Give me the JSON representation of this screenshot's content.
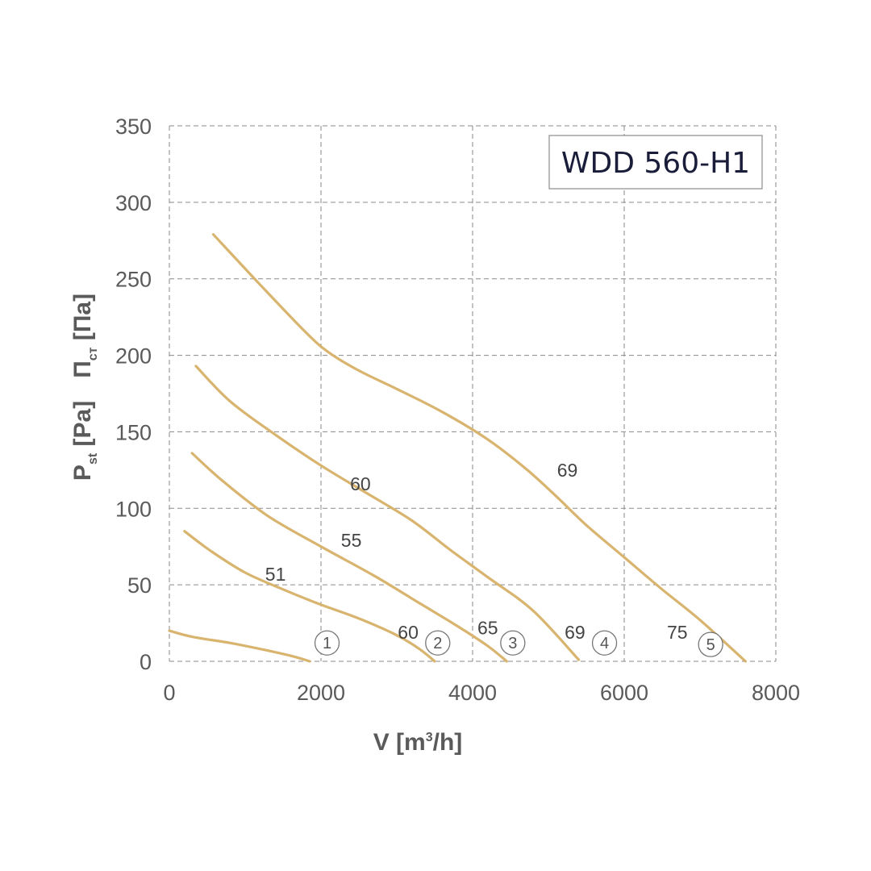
{
  "chart_data": {
    "type": "line",
    "title": "WDD 560-H1",
    "xlabel": {
      "main": "V [m",
      "sup": "3",
      "tail": "/h]"
    },
    "ylabel": {
      "en_main": "P",
      "en_sub": "st",
      "en_tail": " [Pa]",
      "ru_main": "П",
      "ru_sub": "ст",
      "ru_tail": " [Па]"
    },
    "xlim": [
      0,
      8000
    ],
    "ylim": [
      0,
      350
    ],
    "xticks": [
      0,
      2000,
      4000,
      6000,
      8000
    ],
    "yticks": [
      0,
      50,
      100,
      150,
      200,
      250,
      300,
      350
    ],
    "grid": true,
    "series": [
      {
        "name": "1",
        "x": [
          0,
          300,
          800,
          1300,
          1650,
          1850
        ],
        "y": [
          20,
          16,
          12,
          7,
          3,
          0
        ]
      },
      {
        "name": "2",
        "x": [
          200,
          550,
          1000,
          1500,
          2000,
          2500,
          3000,
          3300,
          3500
        ],
        "y": [
          85,
          72,
          58,
          47,
          37,
          28,
          17,
          8,
          0
        ]
      },
      {
        "name": "3",
        "x": [
          300,
          700,
          1300,
          2000,
          2700,
          3300,
          3800,
          4200,
          4450
        ],
        "y": [
          136,
          118,
          95,
          75,
          56,
          38,
          23,
          10,
          0
        ]
      },
      {
        "name": "4",
        "x": [
          350,
          800,
          1400,
          2000,
          2600,
          3200,
          3700,
          4200,
          4800,
          5400
        ],
        "y": [
          193,
          170,
          148,
          128,
          110,
          92,
          73,
          55,
          33,
          1
        ]
      },
      {
        "name": "5",
        "x": [
          580,
          1200,
          1800,
          2100,
          2500,
          3000,
          3600,
          4200,
          4700,
          5100,
          5500,
          6000,
          6500,
          7000,
          7600
        ],
        "y": [
          279,
          246,
          215,
          202,
          190,
          178,
          163,
          145,
          126,
          108,
          89,
          68,
          47,
          27,
          0
        ]
      }
    ],
    "annotations": [
      {
        "text": "51",
        "x": 1400,
        "y": 57
      },
      {
        "text": "60",
        "x": 2520,
        "y": 116
      },
      {
        "text": "55",
        "x": 2400,
        "y": 79
      },
      {
        "text": "69",
        "x": 5250,
        "y": 125
      },
      {
        "text": "60",
        "x": 3150,
        "y": 19
      },
      {
        "text": "65",
        "x": 4200,
        "y": 22
      },
      {
        "text": "69",
        "x": 5350,
        "y": 19
      },
      {
        "text": "75",
        "x": 6700,
        "y": 19
      }
    ],
    "markers": [
      {
        "text": "1",
        "x": 2080,
        "y": 12
      },
      {
        "text": "2",
        "x": 3540,
        "y": 12
      },
      {
        "text": "3",
        "x": 4530,
        "y": 12
      },
      {
        "text": "4",
        "x": 5740,
        "y": 12
      },
      {
        "text": "5",
        "x": 7140,
        "y": 11
      }
    ],
    "colors": {
      "curve": "#d8b46e",
      "grid": "#8a8a8a",
      "text": "#5a5a5a",
      "title": "#1a1d3a"
    }
  }
}
